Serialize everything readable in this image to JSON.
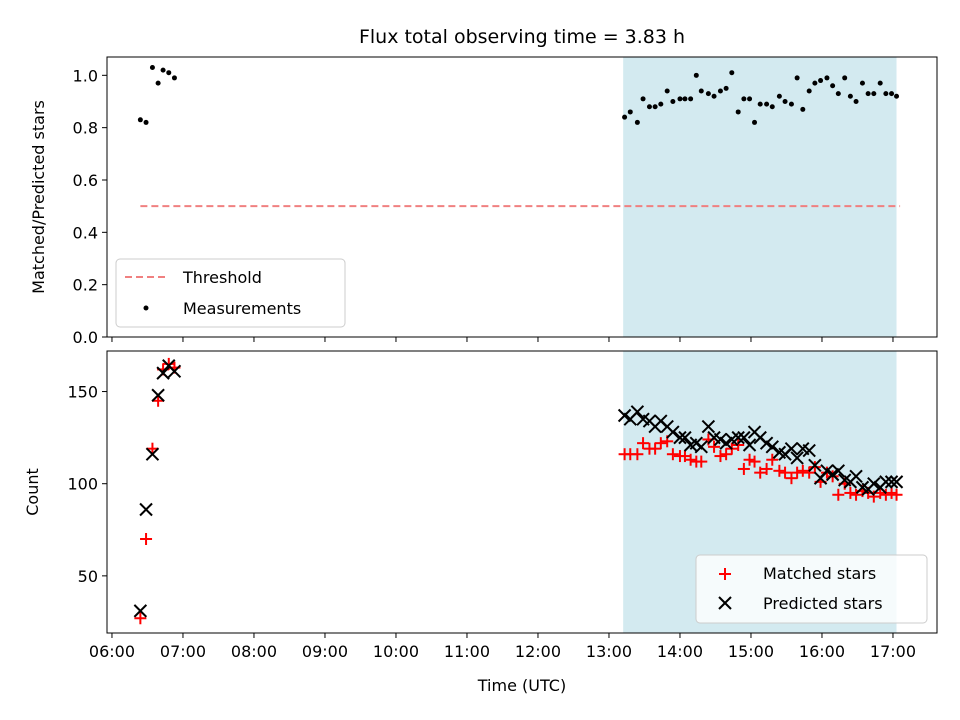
{
  "chart_data": {
    "title": "Flux total observing time = 3.83 h",
    "xlabel": "Time (UTC)",
    "x_tick_labels": [
      "06:00",
      "07:00",
      "08:00",
      "09:00",
      "10:00",
      "11:00",
      "12:00",
      "13:00",
      "14:00",
      "15:00",
      "16:00",
      "17:00"
    ],
    "x_range_hours": [
      5.93,
      17.62
    ],
    "shaded_span_hours": [
      13.2,
      17.05
    ],
    "colors": {
      "shade": "#d3eaf0",
      "threshold": "#f08080",
      "measurements": "#000000",
      "matched": "#ff0000",
      "predicted": "#000000"
    },
    "panels": [
      {
        "type": "scatter",
        "ylabel": "Matched/Predicted stars",
        "ylim": [
          0,
          1.07
        ],
        "y_ticks": [
          "0.0",
          "0.2",
          "0.4",
          "0.6",
          "0.8",
          "1.0"
        ],
        "y_tick_values": [
          0,
          0.2,
          0.4,
          0.6,
          0.8,
          1.0
        ],
        "legend_position": "lower-left",
        "threshold": {
          "name": "Threshold",
          "value": 0.5,
          "x_range_hours": [
            6.4,
            17.1
          ]
        },
        "series": [
          {
            "name": "Measurements",
            "x": [
              6.4,
              6.48,
              6.57,
              6.65,
              6.72,
              6.8,
              6.88,
              13.22,
              13.3,
              13.4,
              13.48,
              13.57,
              13.65,
              13.73,
              13.82,
              13.9,
              14.0,
              14.07,
              14.15,
              14.23,
              14.3,
              14.4,
              14.48,
              14.57,
              14.65,
              14.73,
              14.82,
              14.9,
              14.98,
              15.05,
              15.13,
              15.22,
              15.3,
              15.4,
              15.48,
              15.57,
              15.65,
              15.73,
              15.82,
              15.9,
              15.98,
              16.07,
              16.15,
              16.23,
              16.32,
              16.4,
              16.48,
              16.57,
              16.65,
              16.73,
              16.82,
              16.9,
              16.98,
              17.05
            ],
            "y": [
              0.83,
              0.82,
              1.03,
              0.97,
              1.02,
              1.01,
              0.99,
              0.84,
              0.86,
              0.82,
              0.91,
              0.88,
              0.88,
              0.89,
              0.94,
              0.9,
              0.91,
              0.91,
              0.91,
              1.0,
              0.94,
              0.93,
              0.92,
              0.94,
              0.95,
              1.01,
              0.86,
              0.91,
              0.91,
              0.82,
              0.89,
              0.89,
              0.88,
              0.92,
              0.9,
              0.89,
              0.99,
              0.87,
              0.94,
              0.97,
              0.98,
              0.99,
              0.96,
              0.93,
              0.99,
              0.92,
              0.9,
              0.97,
              0.93,
              0.93,
              0.97,
              0.93,
              0.93,
              0.92
            ]
          }
        ]
      },
      {
        "type": "scatter",
        "ylabel": "Count",
        "ylim": [
          19,
          172
        ],
        "y_ticks": [
          "50",
          "100",
          "150"
        ],
        "y_tick_values": [
          50,
          100,
          150
        ],
        "legend_position": "lower-right",
        "series": [
          {
            "name": "Matched stars",
            "marker": "+",
            "x": [
              6.4,
              6.48,
              6.57,
              6.65,
              6.72,
              6.8,
              6.88,
              13.22,
              13.3,
              13.4,
              13.48,
              13.57,
              13.65,
              13.73,
              13.82,
              13.9,
              14.0,
              14.07,
              14.15,
              14.23,
              14.3,
              14.4,
              14.48,
              14.57,
              14.65,
              14.73,
              14.82,
              14.9,
              14.98,
              15.05,
              15.13,
              15.22,
              15.3,
              15.4,
              15.48,
              15.57,
              15.65,
              15.73,
              15.82,
              15.9,
              15.98,
              16.07,
              16.15,
              16.23,
              16.32,
              16.4,
              16.48,
              16.57,
              16.65,
              16.73,
              16.82,
              16.9,
              16.98,
              17.05
            ],
            "y": [
              27,
              70,
              119,
              145,
              162,
              165,
              163,
              116,
              116,
              116,
              122,
              119,
              119,
              122,
              123,
              116,
              115,
              115,
              113,
              112,
              112,
              124,
              120,
              115,
              116,
              119,
              121,
              108,
              113,
              112,
              106,
              108,
              113,
              107,
              106,
              103,
              106,
              107,
              106,
              109,
              101,
              106,
              104,
              94,
              100,
              95,
              94,
              96,
              95,
              93,
              95,
              94,
              95,
              94
            ]
          },
          {
            "name": "Predicted stars",
            "marker": "x",
            "x": [
              6.4,
              6.48,
              6.57,
              6.65,
              6.72,
              6.8,
              6.88,
              13.22,
              13.3,
              13.4,
              13.48,
              13.57,
              13.65,
              13.73,
              13.82,
              13.9,
              14.0,
              14.07,
              14.15,
              14.23,
              14.3,
              14.4,
              14.48,
              14.57,
              14.65,
              14.73,
              14.82,
              14.9,
              14.98,
              15.05,
              15.13,
              15.22,
              15.3,
              15.4,
              15.48,
              15.57,
              15.65,
              15.73,
              15.82,
              15.9,
              15.98,
              16.07,
              16.15,
              16.23,
              16.32,
              16.4,
              16.48,
              16.57,
              16.65,
              16.73,
              16.82,
              16.9,
              16.98,
              17.05
            ],
            "y": [
              31,
              86,
              116,
              148,
              160,
              164,
              161,
              137,
              135,
              139,
              135,
              134,
              131,
              134,
              131,
              128,
              125,
              125,
              121,
              122,
              120,
              131,
              125,
              124,
              122,
              124,
              125,
              125,
              121,
              128,
              125,
              122,
              120,
              117,
              116,
              119,
              114,
              119,
              118,
              110,
              103,
              107,
              105,
              107,
              102,
              101,
              104,
              98,
              97,
              100,
              98,
              101,
              101,
              101
            ]
          }
        ]
      }
    ]
  }
}
